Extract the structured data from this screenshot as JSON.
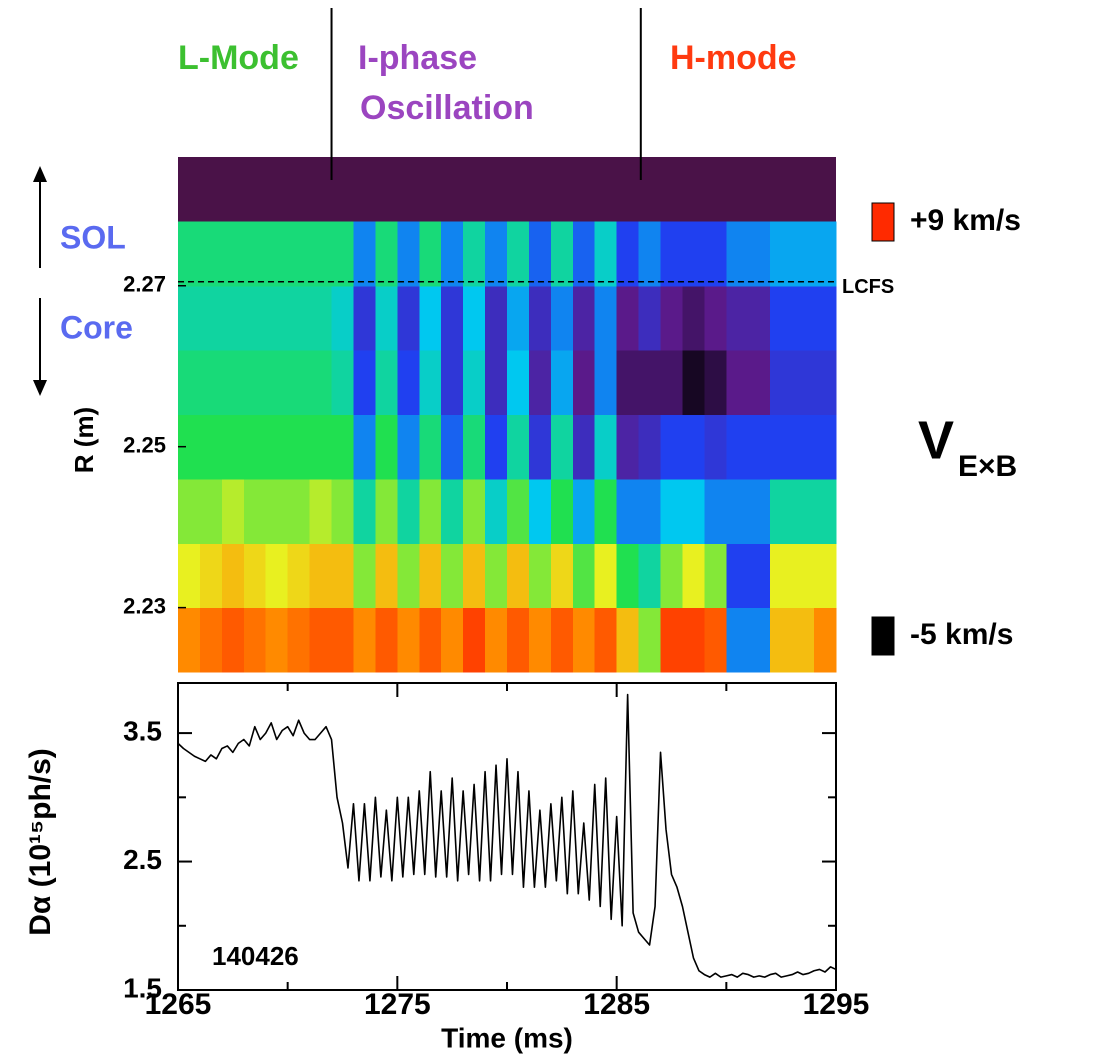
{
  "chart_data": [
    {
      "type": "heatmap",
      "ylabel": "R (m)",
      "xlim": [
        1265,
        1295
      ],
      "ylim": [
        2.222,
        2.286
      ],
      "yticks": [
        2.23,
        2.25,
        2.27
      ],
      "x_edges": [
        1265,
        1266,
        1267,
        1268,
        1269,
        1270,
        1271,
        1272,
        1273,
        1274,
        1275,
        1276,
        1277,
        1278,
        1279,
        1280,
        1281,
        1282,
        1283,
        1284,
        1285,
        1286,
        1287,
        1288,
        1289,
        1290,
        1291,
        1292,
        1293,
        1294,
        1295
      ],
      "y_edges": [
        2.222,
        2.23,
        2.238,
        2.246,
        2.254,
        2.262,
        2.27,
        2.278,
        2.286
      ],
      "values": [
        [
          7,
          7.5,
          8,
          7.5,
          7,
          7.5,
          8,
          8,
          7,
          8,
          7,
          8,
          7,
          8.5,
          7,
          8,
          7,
          8,
          7,
          8,
          6,
          4,
          8.5,
          8.5,
          8,
          0,
          0,
          6,
          6,
          7
        ],
        [
          5,
          5.5,
          6,
          5.5,
          5,
          5.5,
          6,
          6,
          4,
          6,
          4,
          6,
          4,
          6,
          4,
          6,
          4,
          5.5,
          3.5,
          5,
          3,
          2,
          4,
          5,
          4,
          -1,
          -1,
          5,
          5,
          5
        ],
        [
          4,
          4,
          4.5,
          4,
          4,
          4,
          4.5,
          4,
          2,
          4,
          2,
          4,
          2,
          4,
          1.5,
          3.5,
          1,
          3,
          0.5,
          3,
          0,
          0,
          1,
          1,
          0,
          0,
          0,
          2,
          2,
          2
        ],
        [
          3,
          3,
          3,
          3,
          3,
          3,
          3,
          3,
          0,
          3,
          0,
          2.5,
          -0.5,
          2.5,
          -1,
          2,
          -1.5,
          2,
          -2,
          1.5,
          -2.5,
          -2,
          -1,
          -1,
          -1.5,
          -1,
          -1,
          -1,
          -1,
          -1
        ],
        [
          2.5,
          2.5,
          2.5,
          2.5,
          2.5,
          2.5,
          2.5,
          2,
          -1,
          2,
          -1,
          1.5,
          -1.5,
          1.5,
          -2,
          1,
          -2.5,
          0.5,
          -3,
          0,
          -3.5,
          -3.5,
          -3.5,
          -4.5,
          -4,
          -3,
          -3,
          -1.5,
          -1.5,
          -1.5
        ],
        [
          2,
          2,
          2,
          2,
          2,
          2,
          2,
          1.5,
          -1.5,
          1.5,
          -1.5,
          1,
          -1.5,
          1,
          -2,
          0.5,
          -2,
          0,
          -2.5,
          0,
          -3,
          -2,
          -3,
          -3.5,
          -3,
          -2.5,
          -2.5,
          -1,
          -1,
          -1
        ],
        [
          2.5,
          2.5,
          2.5,
          2.5,
          2.5,
          2.5,
          2.5,
          2.5,
          0,
          2.5,
          0,
          2.5,
          0,
          2,
          0,
          2,
          -0.5,
          2,
          -0.5,
          1.5,
          -1,
          0,
          -1,
          -1,
          -1,
          0,
          0,
          0.5,
          0.5,
          0.5
        ],
        [
          null,
          null,
          null,
          null,
          null,
          null,
          null,
          null,
          null,
          null,
          null,
          null,
          null,
          null,
          null,
          null,
          null,
          null,
          null,
          null,
          null,
          null,
          null,
          null,
          null,
          null,
          null,
          null,
          null,
          null
        ]
      ],
      "zlim": [
        -5,
        9
      ],
      "colors": [
        "#000000",
        "#5a1a8a",
        "#2040f0",
        "#00c8f0",
        "#20e050",
        "#e8f020",
        "#ff8a00",
        "#ff2a00"
      ],
      "missing_color": "#4a1248",
      "colorbar_ticks": [
        {
          "value": 9,
          "label": "+9 km/s"
        },
        {
          "value": -5,
          "label": "-5 km/s"
        }
      ],
      "colorbar_title": "V",
      "colorbar_subscript": "E×B",
      "phase_boundaries": [
        1272,
        1286.1
      ],
      "phase_labels": [
        {
          "lines": [
            "L-Mode"
          ],
          "color": "#3cc030"
        },
        {
          "lines": [
            "I-phase",
            "Oscillation"
          ],
          "color": "#9b45c0"
        },
        {
          "lines": [
            "H-mode"
          ],
          "color": "#ff3a10"
        }
      ],
      "region_labels": [
        "SOL",
        "Core"
      ],
      "region_color": "#5a6af0",
      "lcfs": {
        "value": 2.2705,
        "label": "LCFS"
      }
    },
    {
      "type": "line",
      "xlabel": "Time (ms)",
      "ylabel": "Dα (10¹⁵ph/s)",
      "annotation": "140426",
      "color": "#000000",
      "xlim": [
        1265,
        1295
      ],
      "ylim": [
        1.5,
        3.89
      ],
      "xticks": [
        1265,
        1275,
        1285,
        1295
      ],
      "xminor_ticks": [
        1270,
        1280,
        1290
      ],
      "yticks": [
        1.5,
        2.5,
        3.5
      ],
      "yminor_ticks": [
        2,
        3
      ],
      "x": [
        1265,
        1265.25,
        1265.5,
        1265.75,
        1266,
        1266.25,
        1266.5,
        1266.75,
        1267,
        1267.25,
        1267.5,
        1267.75,
        1268,
        1268.25,
        1268.5,
        1268.75,
        1269,
        1269.25,
        1269.5,
        1269.75,
        1270,
        1270.25,
        1270.5,
        1270.75,
        1271,
        1271.25,
        1271.5,
        1271.75,
        1272,
        1272.25,
        1272.5,
        1272.75,
        1273,
        1273.25,
        1273.5,
        1273.75,
        1274,
        1274.25,
        1274.5,
        1274.75,
        1275,
        1275.25,
        1275.5,
        1275.75,
        1276,
        1276.25,
        1276.5,
        1276.75,
        1277,
        1277.25,
        1277.5,
        1277.75,
        1278,
        1278.25,
        1278.5,
        1278.75,
        1279,
        1279.25,
        1279.5,
        1279.75,
        1280,
        1280.25,
        1280.5,
        1280.75,
        1281,
        1281.25,
        1281.5,
        1281.75,
        1282,
        1282.25,
        1282.5,
        1282.75,
        1283,
        1283.25,
        1283.5,
        1283.75,
        1284,
        1284.25,
        1284.5,
        1284.75,
        1285,
        1285.25,
        1285.5,
        1285.75,
        1286,
        1286.25,
        1286.5,
        1286.75,
        1287,
        1287.25,
        1287.5,
        1287.75,
        1288,
        1288.25,
        1288.5,
        1288.75,
        1289,
        1289.25,
        1289.5,
        1289.75,
        1290,
        1290.25,
        1290.5,
        1290.75,
        1291,
        1291.25,
        1291.5,
        1291.75,
        1292,
        1292.25,
        1292.5,
        1292.75,
        1293,
        1293.25,
        1293.5,
        1293.75,
        1294,
        1294.25,
        1294.5,
        1294.75,
        1295
      ],
      "values": [
        3.42,
        3.38,
        3.35,
        3.32,
        3.3,
        3.28,
        3.33,
        3.3,
        3.38,
        3.4,
        3.35,
        3.42,
        3.45,
        3.4,
        3.55,
        3.45,
        3.5,
        3.58,
        3.45,
        3.52,
        3.55,
        3.48,
        3.6,
        3.5,
        3.45,
        3.45,
        3.5,
        3.55,
        3.45,
        3.0,
        2.8,
        2.45,
        2.95,
        2.35,
        2.95,
        2.35,
        3.0,
        2.38,
        2.9,
        2.35,
        3.0,
        2.38,
        3.0,
        2.4,
        3.05,
        2.4,
        3.2,
        2.38,
        3.05,
        2.38,
        3.15,
        2.35,
        3.05,
        2.4,
        3.1,
        2.35,
        3.2,
        2.35,
        3.25,
        2.4,
        3.3,
        2.4,
        3.2,
        2.3,
        3.05,
        2.3,
        2.9,
        2.3,
        2.95,
        2.35,
        3.0,
        2.25,
        3.05,
        2.25,
        2.8,
        2.2,
        3.1,
        2.15,
        3.15,
        2.05,
        2.85,
        2.0,
        3.8,
        2.1,
        1.95,
        1.9,
        1.85,
        2.15,
        3.35,
        2.75,
        2.4,
        2.3,
        2.15,
        1.95,
        1.75,
        1.65,
        1.62,
        1.6,
        1.63,
        1.6,
        1.61,
        1.62,
        1.6,
        1.63,
        1.62,
        1.6,
        1.61,
        1.6,
        1.62,
        1.63,
        1.6,
        1.61,
        1.62,
        1.64,
        1.62,
        1.63,
        1.65,
        1.66,
        1.64,
        1.68,
        1.66
      ]
    }
  ]
}
